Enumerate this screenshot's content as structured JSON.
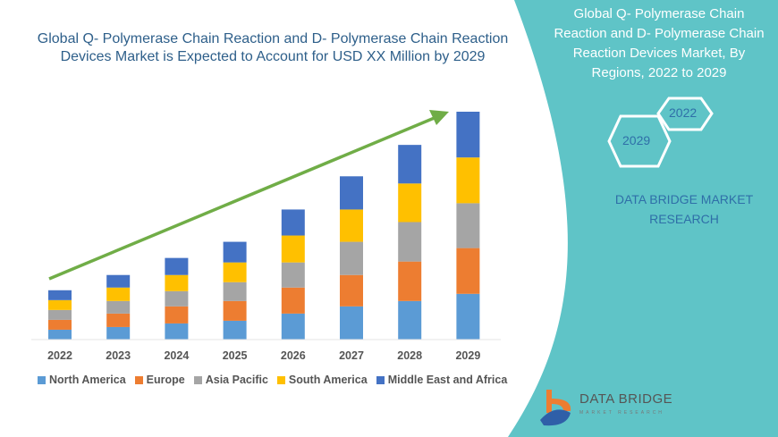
{
  "title": "Global Q- Polymerase Chain Reaction and D- Polymerase Chain Reaction Devices Market is Expected to Account for USD XX Million by 2029",
  "side_panel": {
    "title": "Global Q- Polymerase Chain Reaction and D- Polymerase Chain Reaction Devices Market, By Regions, 2022 to 2029",
    "hex_labels": [
      "2022",
      "2029"
    ],
    "brand": "DATA BRIDGE MARKET RESEARCH",
    "logo_name": "DATA BRIDGE",
    "logo_sub": "MARKET RESEARCH",
    "panel_color": "#5fc4c7"
  },
  "chart_data": {
    "type": "bar",
    "stacked": true,
    "title": "Global Q- Polymerase Chain Reaction and D- Polymerase Chain Reaction Devices Market is Expected to Account for USD XX Million by 2029",
    "xlabel": "",
    "ylabel": "",
    "y_axis_shown": false,
    "grid": false,
    "legend_position": "bottom",
    "categories": [
      "2022",
      "2023",
      "2024",
      "2025",
      "2026",
      "2027",
      "2028",
      "2029"
    ],
    "series": [
      {
        "name": "North America",
        "color": "#5b9bd5",
        "values": [
          11,
          14,
          18,
          21,
          29,
          37,
          43,
          51
        ]
      },
      {
        "name": "Europe",
        "color": "#ed7d31",
        "values": [
          11,
          15,
          19,
          22,
          29,
          35,
          44,
          51
        ]
      },
      {
        "name": "Asia Pacific",
        "color": "#a5a5a5",
        "values": [
          11,
          14,
          17,
          21,
          28,
          37,
          44,
          50
        ]
      },
      {
        "name": "South America",
        "color": "#ffc000",
        "values": [
          11,
          15,
          18,
          22,
          30,
          36,
          43,
          51
        ]
      },
      {
        "name": "Middle East and Africa",
        "color": "#4472c4",
        "values": [
          11,
          14,
          19,
          23,
          29,
          37,
          43,
          51
        ]
      }
    ],
    "trend_arrow_color": "#70ad47"
  }
}
